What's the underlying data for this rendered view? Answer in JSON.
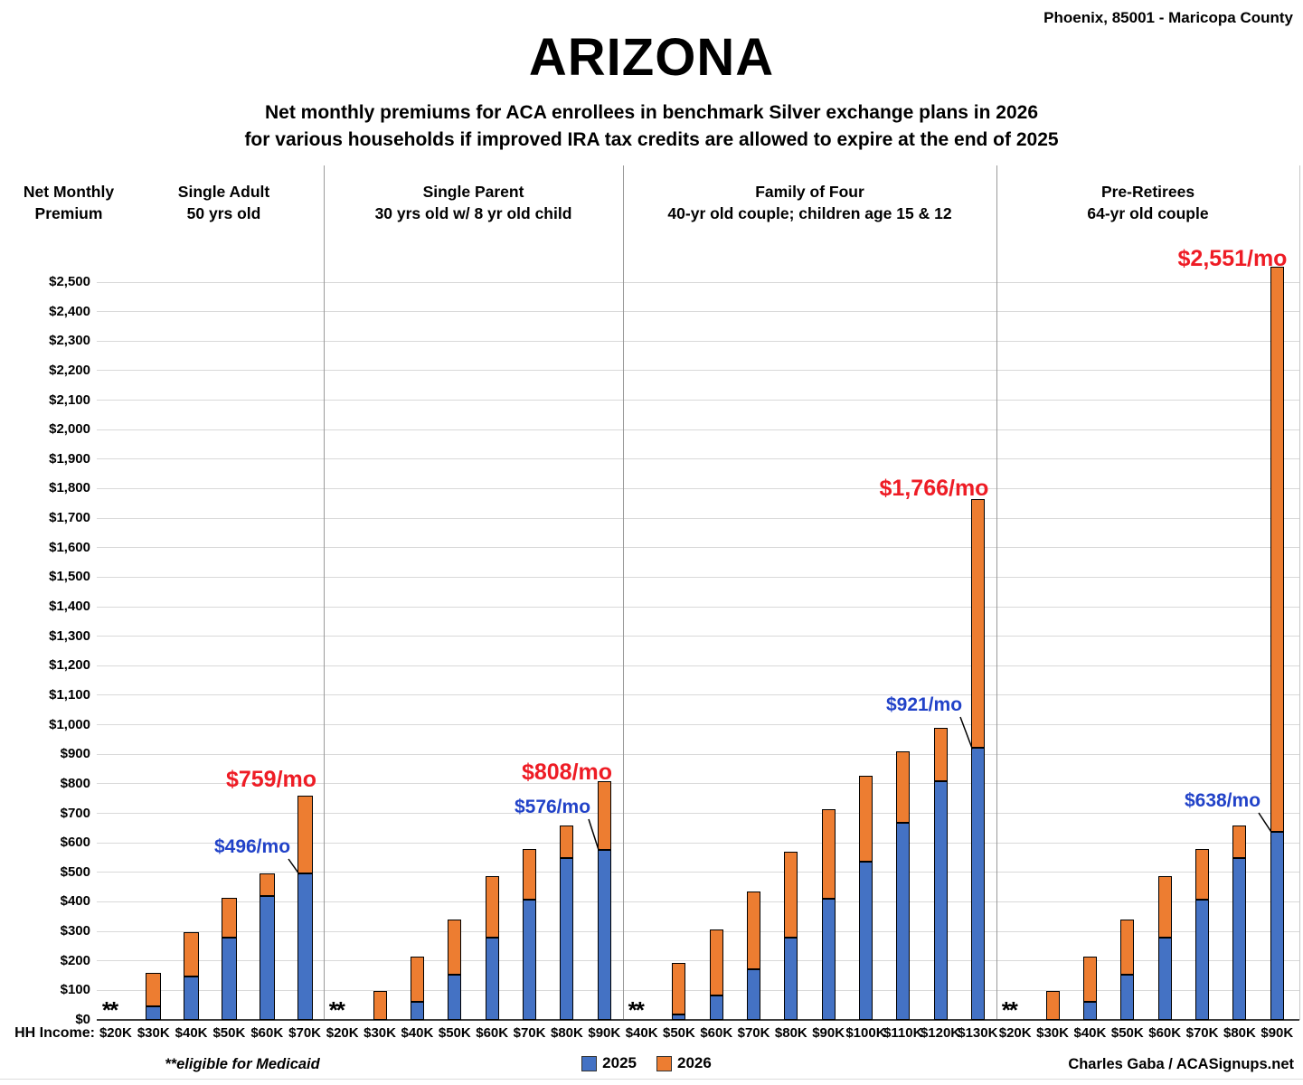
{
  "header": {
    "location": "Phoenix, 85001 - Maricopa County",
    "title": "ARIZONA",
    "subtitle_line1": "Net monthly premiums for ACA enrollees in benchmark Silver exchange plans in 2026",
    "subtitle_line2": "for various households if improved IRA tax credits are allowed to expire at the end of 2025"
  },
  "axis": {
    "y_title_line1": "Net Monthly",
    "y_title_line2": "Premium",
    "x_title": "HH Income:",
    "y_min": 0,
    "y_max": 2500,
    "y_step": 100
  },
  "chart_data": {
    "type": "bar",
    "render": "overlay-stacked",
    "grid": "horizontal-on",
    "series_names": [
      "2025",
      "2026"
    ],
    "ylim": [
      0,
      2500
    ],
    "groups": [
      {
        "label_line1": "Single Adult",
        "label_line2": "50 yrs old",
        "categories": [
          "$20K",
          "$30K",
          "$40K",
          "$50K",
          "$60K",
          "$70K"
        ],
        "medicaid": [
          true,
          false,
          false,
          false,
          false,
          false
        ],
        "v2025": [
          null,
          46,
          148,
          278,
          420,
          496
        ],
        "v2026": [
          null,
          160,
          297,
          415,
          496,
          759
        ],
        "annotations": {
          "label_2025": "$496/mo",
          "label_2026": "$759/mo",
          "target_category": "$70K"
        }
      },
      {
        "label_line1": "Single Parent",
        "label_line2": "30 yrs old w/ 8 yr old child",
        "categories": [
          "$20K",
          "$30K",
          "$40K",
          "$50K",
          "$60K",
          "$70K",
          "$80K",
          "$90K"
        ],
        "medicaid": [
          true,
          false,
          false,
          false,
          false,
          false,
          false,
          false
        ],
        "v2025": [
          null,
          0,
          60,
          152,
          280,
          407,
          548,
          576
        ],
        "v2026": [
          null,
          97,
          214,
          341,
          486,
          580,
          660,
          808
        ],
        "annotations": {
          "label_2025": "$576/mo",
          "label_2026": "$808/mo",
          "target_category": "$90K"
        }
      },
      {
        "label_line1": "Family of Four",
        "label_line2": "40-yr old couple; children age 15 & 12",
        "categories": [
          "$40K",
          "$50K",
          "$60K",
          "$70K",
          "$80K",
          "$90K",
          "$100K",
          "$110K",
          "$120K",
          "$130K"
        ],
        "medicaid": [
          true,
          false,
          false,
          false,
          false,
          false,
          false,
          false,
          false,
          false
        ],
        "v2025": [
          null,
          18,
          82,
          172,
          278,
          411,
          537,
          667,
          808,
          921
        ],
        "v2026": [
          null,
          192,
          307,
          434,
          570,
          713,
          826,
          909,
          991,
          1766
        ],
        "annotations": {
          "label_2025": "$921/mo",
          "label_2026": "$1,766/mo",
          "target_category": "$130K"
        }
      },
      {
        "label_line1": "Pre-Retirees",
        "label_line2": "64-yr old couple",
        "categories": [
          "$20K",
          "$30K",
          "$40K",
          "$50K",
          "$60K",
          "$70K",
          "$80K",
          "$90K"
        ],
        "medicaid": [
          true,
          false,
          false,
          false,
          false,
          false,
          false,
          false
        ],
        "v2025": [
          null,
          0,
          60,
          152,
          280,
          407,
          548,
          638
        ],
        "v2026": [
          null,
          97,
          214,
          341,
          486,
          580,
          660,
          2551
        ],
        "annotations": {
          "label_2025": "$638/mo",
          "label_2026": "$2,551/mo",
          "target_category": "$90K"
        }
      }
    ]
  },
  "legend": {
    "items": [
      {
        "label": "2025",
        "color": "#4472C4"
      },
      {
        "label": "2026",
        "color": "#ED7D31"
      }
    ]
  },
  "footnotes": {
    "medicaid_mark": "**",
    "medicaid": "**eligible for Medicaid",
    "credit": "Charles Gaba / ACASignups.net"
  },
  "colors": {
    "bar_2025": "#4472C4",
    "bar_2026": "#ED7D31",
    "annotation_2025": "#2142c8",
    "annotation_2026": "#ee1c25"
  }
}
